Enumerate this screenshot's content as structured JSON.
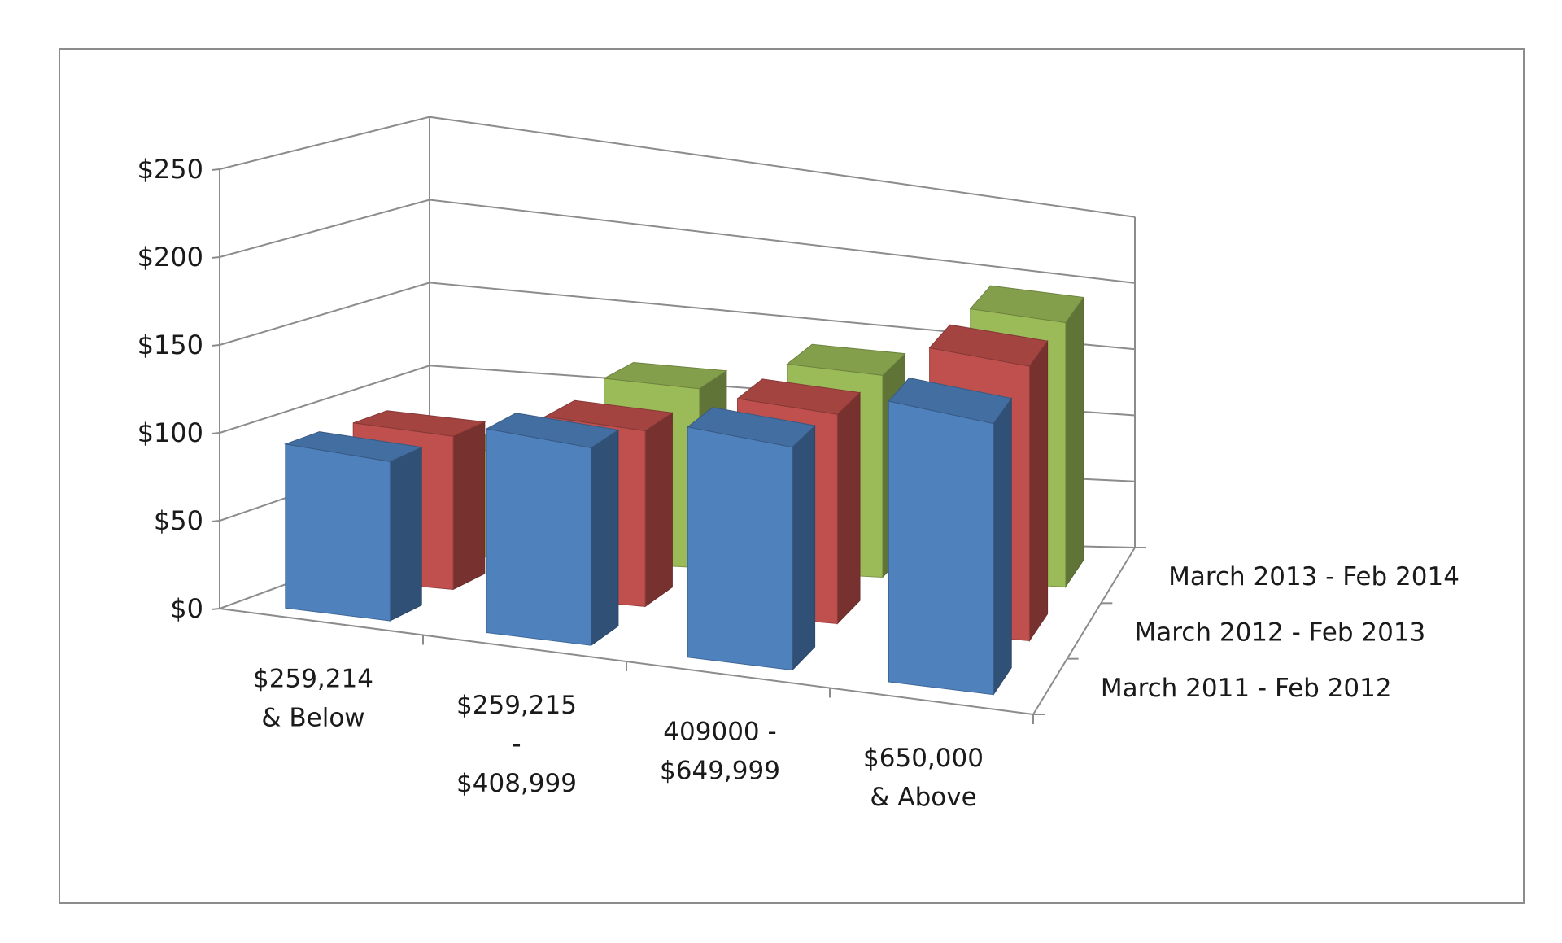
{
  "chart_data": {
    "type": "bar",
    "categories": [
      [
        "$259,214",
        "& Below"
      ],
      [
        "$259,215",
        "-",
        "$408,999"
      ],
      [
        "409000 -",
        "$649,999"
      ],
      [
        "$650,000",
        "& Above"
      ]
    ],
    "series": [
      {
        "name": "March 2011 - Feb 2012",
        "values": [
          95,
          125,
          150,
          195
        ],
        "color": "#4F81BD"
      },
      {
        "name": "March 2012 - Feb 2013",
        "values": [
          93,
          113,
          143,
          200
        ],
        "color": "#C0504D"
      },
      {
        "name": "March 2013 - Feb 2014",
        "values": [
          65,
          117,
          140,
          195
        ],
        "color": "#9BBB59"
      }
    ],
    "yticks": [
      "$0",
      "$50",
      "$100",
      "$150",
      "$200",
      "$250"
    ],
    "ylim": [
      0,
      250
    ],
    "grid": true
  }
}
